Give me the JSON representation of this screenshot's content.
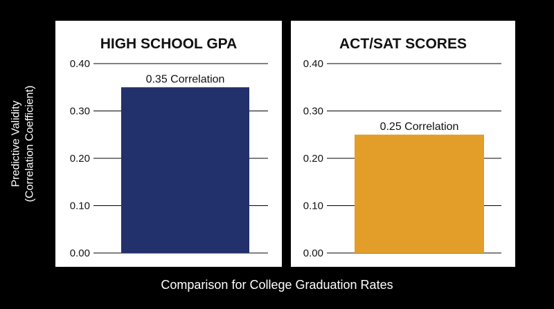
{
  "ylabel_lines": [
    "Predictive Validity",
    "(Correlation Coefficient)"
  ],
  "xlabel": "Comparison for College Graduation Rates",
  "chart_data": [
    {
      "type": "bar",
      "title": "HIGH SCHOOL GPA",
      "categories": [
        "High School GPA"
      ],
      "values": [
        0.35
      ],
      "data_labels": [
        "0.35 Correlation"
      ],
      "ylim": [
        0,
        0.4
      ],
      "yticks": [
        "0.00",
        "0.10",
        "0.20",
        "0.30",
        "0.40"
      ],
      "grid": true,
      "color": "#22306b"
    },
    {
      "type": "bar",
      "title": "ACT/SAT SCORES",
      "categories": [
        "ACT/SAT Scores"
      ],
      "values": [
        0.25
      ],
      "data_labels": [
        "0.25 Correlation"
      ],
      "ylim": [
        0,
        0.4
      ],
      "yticks": [
        "0.00",
        "0.10",
        "0.20",
        "0.30",
        "0.40"
      ],
      "grid": true,
      "color": "#e39e2a"
    }
  ]
}
